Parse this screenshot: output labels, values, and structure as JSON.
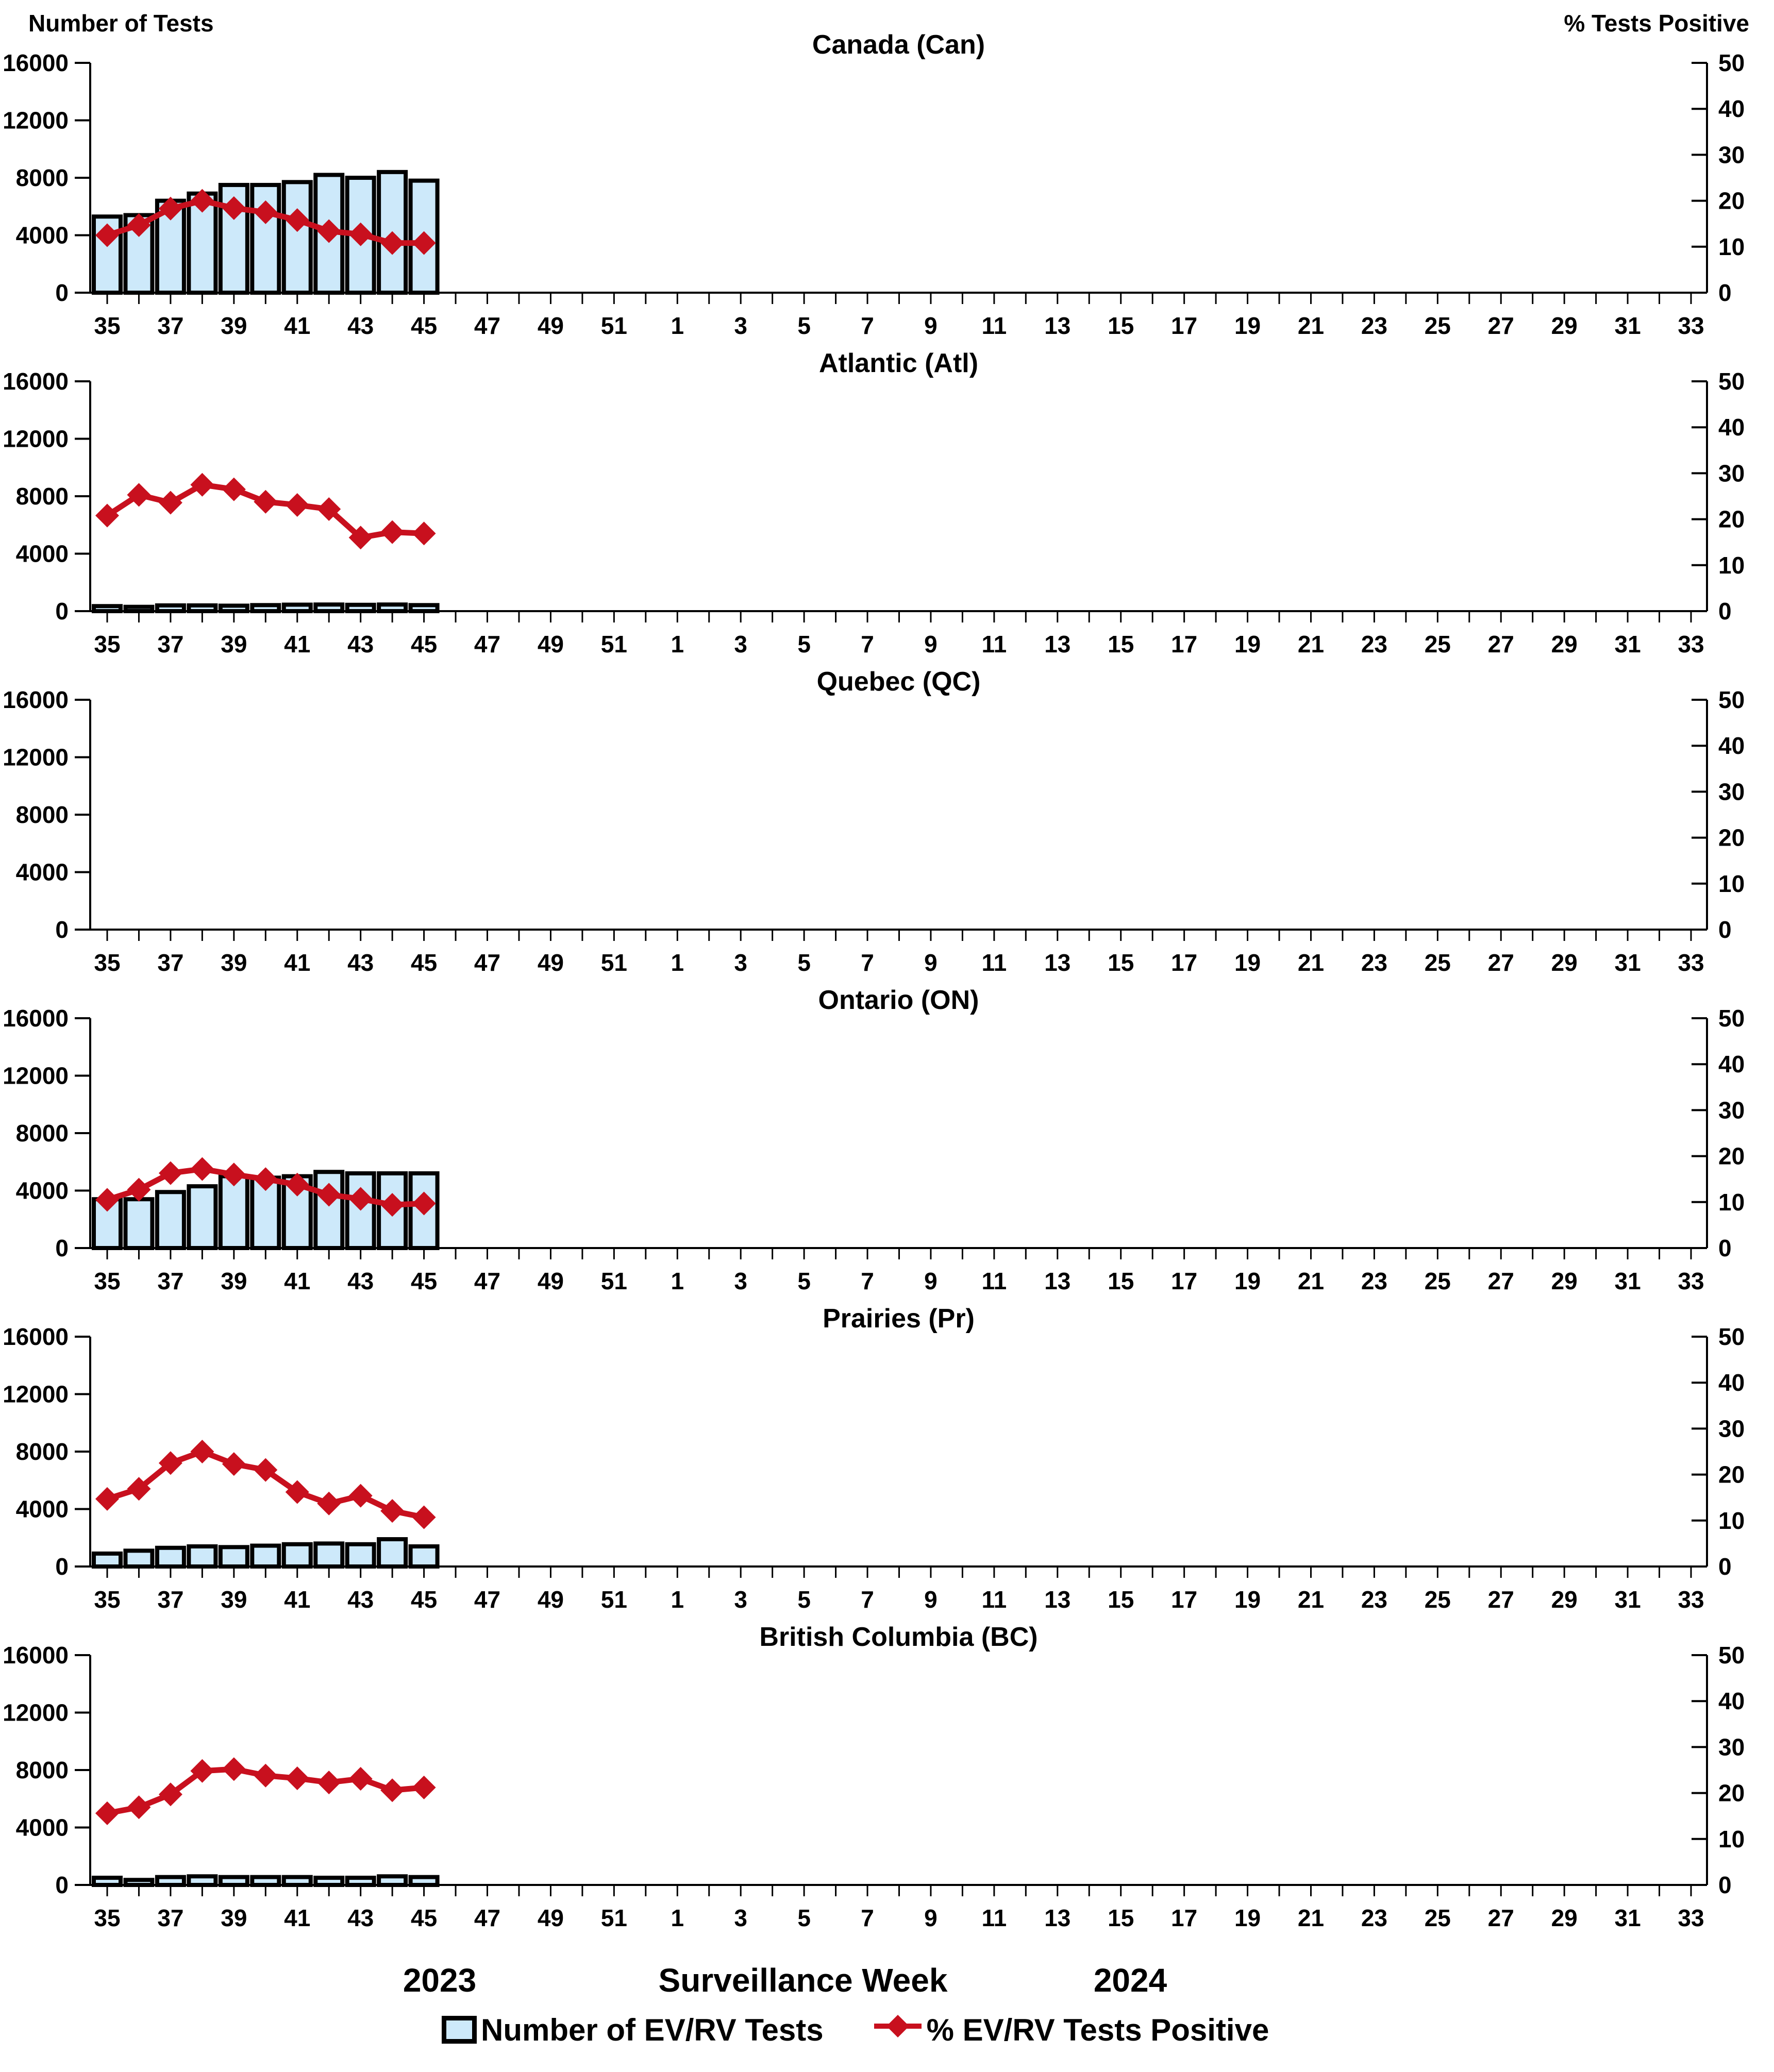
{
  "header": {
    "left_axis_title": "Number of Tests",
    "right_axis_title": "% Tests Positive"
  },
  "footer": {
    "year_left": "2023",
    "axis_caption": "Surveillance Week",
    "year_right": "2024"
  },
  "legend": {
    "bars_label": "Number of EV/RV Tests",
    "line_label": "% EV/RV Tests Positive"
  },
  "colors": {
    "bar_fill": "#CDE9FA",
    "bar_stroke": "#000000",
    "line": "#C8101E",
    "axis": "#000000"
  },
  "axes": {
    "x_tick_labels": [
      "35",
      "37",
      "39",
      "41",
      "43",
      "45",
      "47",
      "49",
      "51",
      "1",
      "3",
      "5",
      "7",
      "9",
      "11",
      "13",
      "15",
      "17",
      "19",
      "21",
      "23",
      "25",
      "27",
      "29",
      "31",
      "33"
    ],
    "weeks_2023": 18,
    "weeks_2024": 33,
    "y_left": {
      "min": 0,
      "max": 16000,
      "ticks": [
        0,
        4000,
        8000,
        12000,
        16000
      ]
    },
    "y_right": {
      "min": 0,
      "max": 50,
      "ticks": [
        0,
        10,
        20,
        30,
        40,
        50
      ]
    }
  },
  "chart_data": [
    {
      "type": "bar+line",
      "title": "Canada (Can)",
      "categories": [
        35,
        36,
        37,
        38,
        39,
        40,
        41,
        42,
        43,
        44,
        45
      ],
      "series": [
        {
          "name": "Number of EV/RV Tests",
          "type": "bar",
          "axis": "left",
          "values": [
            5300,
            5400,
            6400,
            6900,
            7500,
            7500,
            7700,
            8200,
            8000,
            8400,
            7800
          ]
        },
        {
          "name": "% EV/RV Tests Positive",
          "type": "line",
          "axis": "right",
          "values": [
            12.5,
            14.7,
            18.3,
            20.0,
            18.4,
            17.5,
            15.8,
            13.4,
            12.7,
            10.8,
            10.8
          ]
        }
      ],
      "ylim_left": [
        0,
        16000
      ],
      "ylim_right": [
        0,
        50
      ]
    },
    {
      "type": "bar+line",
      "title": "Atlantic (Atl)",
      "categories": [
        35,
        36,
        37,
        38,
        39,
        40,
        41,
        42,
        43,
        44,
        45
      ],
      "series": [
        {
          "name": "Number of EV/RV Tests",
          "type": "bar",
          "axis": "left",
          "values": [
            350,
            300,
            400,
            400,
            380,
            420,
            450,
            460,
            440,
            460,
            420
          ]
        },
        {
          "name": "% EV/RV Tests Positive",
          "type": "line",
          "axis": "right",
          "values": [
            20.8,
            25.3,
            23.6,
            27.5,
            26.5,
            23.8,
            23.1,
            22.2,
            16.0,
            17.2,
            16.9
          ]
        }
      ],
      "ylim_left": [
        0,
        16000
      ],
      "ylim_right": [
        0,
        50
      ]
    },
    {
      "type": "bar+line",
      "title": "Quebec (QC)",
      "categories": [],
      "series": [
        {
          "name": "Number of EV/RV Tests",
          "type": "bar",
          "axis": "left",
          "values": []
        },
        {
          "name": "% EV/RV Tests Positive",
          "type": "line",
          "axis": "right",
          "values": []
        }
      ],
      "ylim_left": [
        0,
        16000
      ],
      "ylim_right": [
        0,
        50
      ]
    },
    {
      "type": "bar+line",
      "title": "Ontario (ON)",
      "categories": [
        35,
        36,
        37,
        38,
        39,
        40,
        41,
        42,
        43,
        44,
        45
      ],
      "series": [
        {
          "name": "Number of EV/RV Tests",
          "type": "bar",
          "axis": "left",
          "values": [
            3400,
            3400,
            3900,
            4300,
            5000,
            4900,
            5000,
            5300,
            5200,
            5200,
            5200
          ]
        },
        {
          "name": "% EV/RV Tests Positive",
          "type": "line",
          "axis": "right",
          "values": [
            10.5,
            12.7,
            16.3,
            17.2,
            16.0,
            15.0,
            13.8,
            11.6,
            10.7,
            9.4,
            9.7
          ]
        }
      ],
      "ylim_left": [
        0,
        16000
      ],
      "ylim_right": [
        0,
        50
      ]
    },
    {
      "type": "bar+line",
      "title": "Prairies (Pr)",
      "categories": [
        35,
        36,
        37,
        38,
        39,
        40,
        41,
        42,
        43,
        44,
        45
      ],
      "series": [
        {
          "name": "Number of EV/RV Tests",
          "type": "bar",
          "axis": "left",
          "values": [
            900,
            1100,
            1300,
            1400,
            1350,
            1450,
            1550,
            1600,
            1550,
            1900,
            1400
          ]
        },
        {
          "name": "% EV/RV Tests Positive",
          "type": "line",
          "axis": "right",
          "values": [
            14.7,
            16.9,
            22.5,
            25.0,
            22.3,
            21.0,
            16.2,
            13.7,
            15.4,
            12.1,
            10.7
          ]
        }
      ],
      "ylim_left": [
        0,
        16000
      ],
      "ylim_right": [
        0,
        50
      ]
    },
    {
      "type": "bar+line",
      "title": "British Columbia (BC)",
      "categories": [
        35,
        36,
        37,
        38,
        39,
        40,
        41,
        42,
        43,
        44,
        45
      ],
      "series": [
        {
          "name": "Number of EV/RV Tests",
          "type": "bar",
          "axis": "left",
          "values": [
            500,
            350,
            550,
            600,
            550,
            550,
            550,
            500,
            500,
            600,
            550
          ]
        },
        {
          "name": "% EV/RV Tests Positive",
          "type": "line",
          "axis": "right",
          "values": [
            15.6,
            16.9,
            19.7,
            24.8,
            25.2,
            23.8,
            23.2,
            22.3,
            23.1,
            20.6,
            21.2
          ]
        }
      ],
      "ylim_left": [
        0,
        16000
      ],
      "ylim_right": [
        0,
        50
      ]
    }
  ]
}
